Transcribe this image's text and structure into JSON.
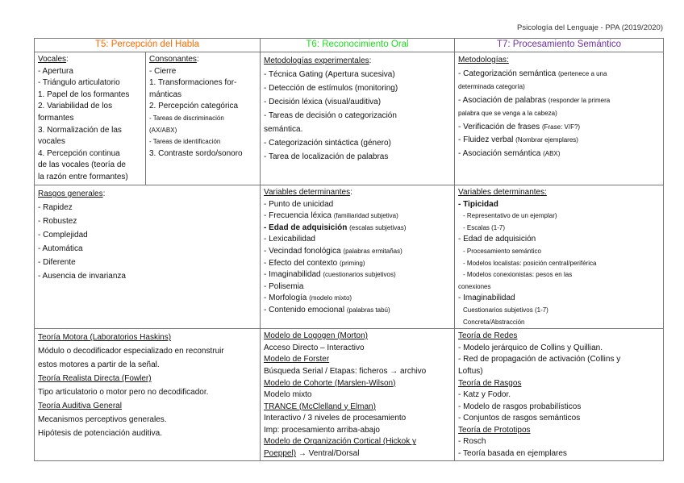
{
  "header": "Psicología del Lenguaje - PPA (2019/2020)",
  "colors": {
    "t5": "#ff6a00",
    "t6": "#22dd22",
    "t7": "#7030a0"
  },
  "columns": [
    {
      "title": "T5: Percepción del Habla"
    },
    {
      "title": "T6: Reconocimiento Oral"
    },
    {
      "title": "T7: Procesamiento Semántico"
    }
  ],
  "cells": {
    "r1_vocales": [
      {
        "text": "Vocales",
        "u": true,
        "tail": ":"
      },
      {
        "text": "- Apertura"
      },
      {
        "text": "- Triángulo articulatorio"
      },
      {
        "text": "1. Papel de los formantes"
      },
      {
        "text": "2. Variabilidad de los"
      },
      {
        "text": "formantes"
      },
      {
        "text": "3. Normalización de las"
      },
      {
        "text": "vocales"
      },
      {
        "text": "4. Percepción continua"
      },
      {
        "text": "de las vocales (teoría de"
      },
      {
        "text": "la razón entre formantes)"
      }
    ],
    "r1_consonantes": [
      {
        "text": "Consonantes",
        "u": true,
        "tail": ":"
      },
      {
        "text": "- Cierre"
      },
      {
        "text": " "
      },
      {
        "text": "1. Transformaciones for-"
      },
      {
        "text": "mánticas"
      },
      {
        "text": "2. Percepción categórica"
      },
      {
        "text": "- Tareas de discriminación",
        "small": true
      },
      {
        "text": "(AX/ABX)",
        "small": true
      },
      {
        "text": "- Tareas de identificación",
        "small": true
      },
      {
        "text": "3. Contraste sordo/sonoro"
      }
    ],
    "r1_t6": [
      {
        "text": "Metodologías experimentales",
        "u": true,
        "tail": ":"
      },
      {
        "text": "- Técnica Gating (Apertura sucesiva)"
      },
      {
        "text": "- Detección de estímulos (monitoring)"
      },
      {
        "text": "- Decisión léxica (visual/auditiva)"
      },
      {
        "text": "- Tareas de decisión o categorización"
      },
      {
        "text": "semántica."
      },
      {
        "text": "- Categorización sintáctica (género)"
      },
      {
        "text": "- Tarea de localización de palabras"
      }
    ],
    "r1_t7": [
      {
        "text": "Metodologías:",
        "u": true
      },
      {
        "text": "- Categorización semántica ",
        "note": "(pertenece a una"
      },
      {
        "text": "",
        "note": "determinada categoría)"
      },
      {
        "text": "- Asociación de palabras ",
        "note": "(responder la primera"
      },
      {
        "text": "",
        "note": "palabra que se venga a la cabeza)"
      },
      {
        "text": "- Verificación de frases ",
        "note": "(Frase: V/F?)"
      },
      {
        "text": "- Fluidez verbal ",
        "note": "(Nombrar ejemplares)"
      },
      {
        "text": "- Asociación semántica ",
        "note": "(ABX)"
      }
    ],
    "r2_t5": [
      {
        "text": "Rasgos generales",
        "u": true,
        "tail": ":"
      },
      {
        "text": "- Rapidez"
      },
      {
        "text": "- Robustez"
      },
      {
        "text": "- Complejidad"
      },
      {
        "text": "- Automática"
      },
      {
        "text": "- Diferente"
      },
      {
        "text": "- Ausencia de invarianza"
      }
    ],
    "r2_t6": [
      {
        "text": "Variables determinantes",
        "u": true,
        "tail": ":"
      },
      {
        "text": "- Punto de unicidad"
      },
      {
        "text": "- Frecuencia léxica ",
        "note": "(familiaridad subjetiva)"
      },
      {
        "text": "- Edad de adquisición ",
        "bold": true,
        "note": "(escalas subjetivas)"
      },
      {
        "text": "- Lexicabilidad"
      },
      {
        "text": "- Vecindad fonológica ",
        "note": "(palabras ermitañas)"
      },
      {
        "text": "- Efecto del contexto ",
        "note": "(priming)"
      },
      {
        "text": "- Imaginabilidad ",
        "note": "(cuestionarios subjetivos)"
      },
      {
        "text": "- Polisemia"
      },
      {
        "text": "- Morfología ",
        "note": "(modelo mixto)"
      },
      {
        "text": "- Contenido emocional ",
        "note": "(palabras tabú)"
      }
    ],
    "r2_t7": [
      {
        "text": "Variables determinantes:",
        "u": true
      },
      {
        "text": "- Tipicidad",
        "bold": true
      },
      {
        "text": "- Representativo de un ejemplar)",
        "small": true,
        "indent": true
      },
      {
        "text": "- Escalas (1-7)",
        "small": true,
        "indent": true
      },
      {
        "text": "- Edad de adquisición"
      },
      {
        "text": "- Procesamiento semántico",
        "small": true,
        "indent": true
      },
      {
        "text": "- Modelos localistas: posición central/periférica",
        "small": true,
        "indent": true
      },
      {
        "text": "- Modelos conexionistas: pesos en las",
        "small": true,
        "indent": true
      },
      {
        "text": "conexiones",
        "small": true
      },
      {
        "text": "- Imaginabilidad"
      },
      {
        "text": "Cuestionarios subjetivos (1-7)",
        "small": true,
        "indent": true
      },
      {
        "text": "Concreta/Abstracción",
        "small": true,
        "indent": true
      }
    ],
    "r3_t5": [
      {
        "text": "Teoría Motora (Laboratorios Haskins)",
        "u": true
      },
      {
        "text": "Módulo o decodificador especializado en reconstruir"
      },
      {
        "text": "estos motores a partir de la señal."
      },
      {
        "text": "Teoría Realista Directa (Fowler)",
        "u": true
      },
      {
        "text": "Tipo articulatorio o motor pero no decodificador."
      },
      {
        "text": "Teoría Auditiva General",
        "u": true
      },
      {
        "text": "Mecanismos perceptivos generales."
      },
      {
        "text": "Hipótesis de potenciación auditiva."
      }
    ],
    "r3_t6": [
      {
        "text": "Modelo de Logogen (Morton)",
        "u": true
      },
      {
        "text": "Acceso Directo – Interactivo"
      },
      {
        "text": "Modelo de Forster",
        "u": true
      },
      {
        "text": "Búsqueda Serial / Etapas: ficheros → archivo"
      },
      {
        "text": "Modelo de Cohorte (Marslen-Wilson)",
        "u": true
      },
      {
        "text": "Modelo mixto"
      },
      {
        "text": "TRANCE (McClelland y Elman)",
        "u": true
      },
      {
        "text": "Interactivo / 3 niveles de procesamiento"
      },
      {
        "text": "Imp: procesamiento arriba-abajo"
      },
      {
        "text": "Modelo de Organización Cortical (Hickok y",
        "u": true
      },
      {
        "text": "Poeppel)",
        "u": true,
        "tail": " → Ventral/Dorsal"
      }
    ],
    "r3_t7": [
      {
        "text": "Teoría de Redes",
        "u": true
      },
      {
        "text": "- Modelo jerárquico de Collins y Quillian."
      },
      {
        "text": "- Red de propagación de activación (Collins y"
      },
      {
        "text": "Loftus)"
      },
      {
        "text": "Teoría de Rasgos",
        "u": true
      },
      {
        "text": "- Katz y Fodor."
      },
      {
        "text": "- Modelo de rasgos probabilísticos"
      },
      {
        "text": "- Conjuntos de rasgos semánticos"
      },
      {
        "text": "Teoría de Prototipos",
        "u": true
      },
      {
        "text": "- Rosch"
      },
      {
        "text": "- Teoría basada en ejemplares"
      }
    ]
  }
}
